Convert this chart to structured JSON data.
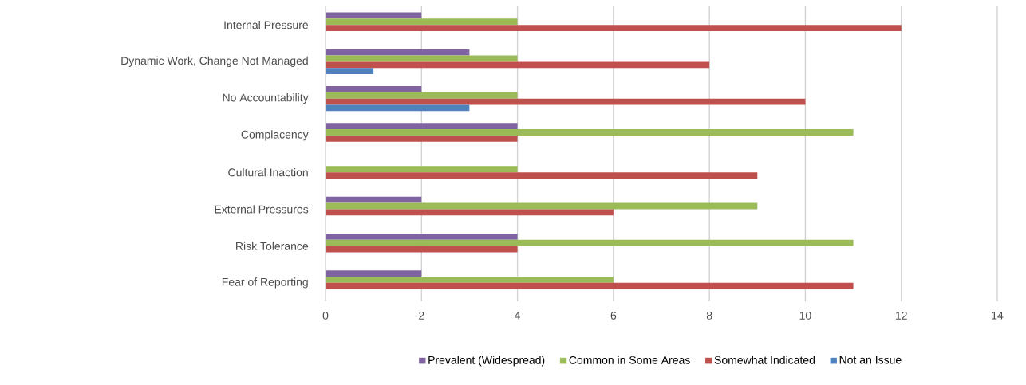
{
  "chart_data": {
    "type": "bar",
    "orientation": "horizontal",
    "categories": [
      "Internal Pressure",
      "Dynamic Work, Change Not Managed",
      "No Accountability",
      "Complacency",
      "Cultural Inaction",
      "External Pressures",
      "Risk Tolerance",
      "Fear of Reporting"
    ],
    "series": [
      {
        "name": "Prevalent (Widespread)",
        "color": "#8064a2",
        "values": [
          2,
          3,
          2,
          4,
          null,
          2,
          4,
          2
        ]
      },
      {
        "name": "Common in Some Areas",
        "color": "#9bbb59",
        "values": [
          4,
          4,
          4,
          11,
          4,
          9,
          11,
          6
        ]
      },
      {
        "name": "Somewhat Indicated",
        "color": "#c0504d",
        "values": [
          12,
          8,
          10,
          4,
          9,
          6,
          4,
          11
        ]
      },
      {
        "name": "Not an Issue",
        "color": "#4f81bd",
        "values": [
          null,
          1,
          3,
          null,
          null,
          null,
          null,
          null
        ]
      }
    ],
    "xlim": [
      0,
      14
    ],
    "xticks": [
      0,
      2,
      4,
      6,
      8,
      10,
      12,
      14
    ],
    "grid": "x",
    "legend": "bottom"
  }
}
